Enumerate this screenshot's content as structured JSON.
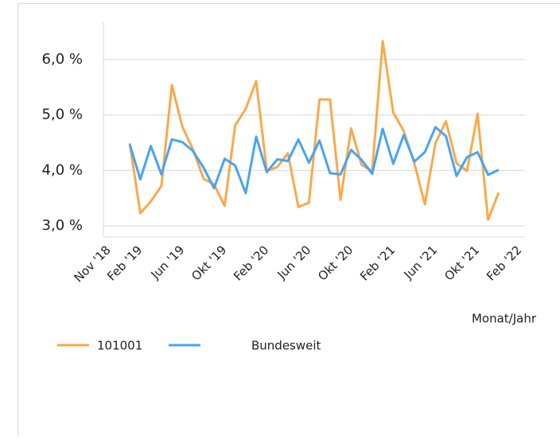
{
  "chart_data": {
    "type": "line",
    "x_label": "Monat/Jahr",
    "categories": [
      "Nov '18",
      null,
      null,
      "Feb '19",
      null,
      null,
      null,
      "Jun '19",
      null,
      null,
      null,
      "Okt '19",
      null,
      null,
      null,
      "Feb '20",
      null,
      null,
      null,
      "Jun '20",
      null,
      null,
      null,
      "Okt '20",
      null,
      null,
      null,
      "Feb '21",
      null,
      null,
      null,
      "Jun '21",
      null,
      null,
      null,
      "Okt '21",
      null,
      null,
      null,
      "Feb '22"
    ],
    "series": [
      {
        "name": "101001",
        "color": "#f9a94b",
        "values": [
          null,
          null,
          4.49,
          3.23,
          3.44,
          3.72,
          5.54,
          4.78,
          4.38,
          3.85,
          3.75,
          3.36,
          4.81,
          5.11,
          5.61,
          3.99,
          4.06,
          4.31,
          3.34,
          3.42,
          5.28,
          5.28,
          3.47,
          4.76,
          4.1,
          3.99,
          6.33,
          5.04,
          4.71,
          4.13,
          3.39,
          4.49,
          4.89,
          4.13,
          3.99,
          5.02,
          3.11,
          3.6,
          null,
          null
        ]
      },
      {
        "name": "Bundesweit",
        "color": "#4aa3f0",
        "values": [
          null,
          null,
          4.47,
          3.84,
          4.44,
          3.93,
          4.56,
          4.51,
          4.35,
          4.05,
          3.68,
          4.21,
          4.09,
          3.59,
          4.61,
          3.97,
          4.2,
          4.17,
          4.56,
          4.14,
          4.54,
          3.95,
          3.93,
          4.37,
          4.19,
          3.94,
          4.75,
          4.12,
          4.64,
          4.16,
          4.33,
          4.78,
          4.62,
          3.9,
          4.24,
          4.33,
          3.92,
          4.01,
          null,
          null
        ]
      }
    ],
    "ylim": [
      2.8,
      6.6
    ],
    "yticks": [
      {
        "value": 3,
        "label": "3,0 %"
      },
      {
        "value": 4,
        "label": "4,0 %"
      },
      {
        "value": 5,
        "label": "5,0 %"
      },
      {
        "value": 6,
        "label": "6,0 %"
      }
    ],
    "grid": true,
    "legend": "bottom"
  }
}
